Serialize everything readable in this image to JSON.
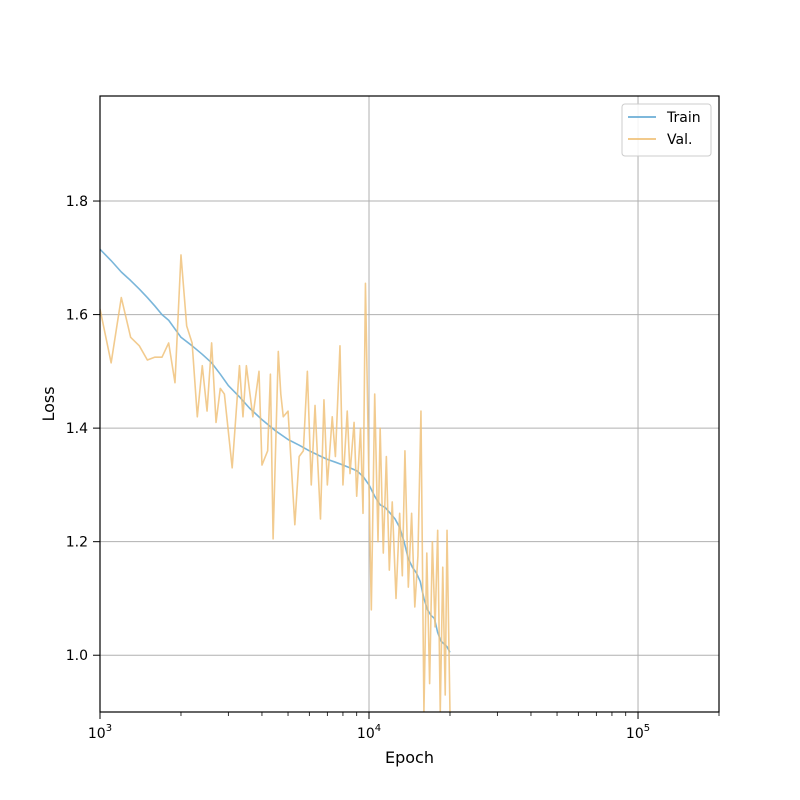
{
  "chart_data": {
    "type": "line",
    "title": "",
    "xlabel": "Epoch",
    "ylabel": "Loss",
    "xscale": "log",
    "xlim": [
      1000,
      200000
    ],
    "ylim": [
      0.9,
      1.985
    ],
    "grid": true,
    "legend_position": "top-right",
    "x_major_ticks": [
      {
        "value": 1000,
        "base": "10",
        "exp": "3"
      },
      {
        "value": 10000,
        "base": "10",
        "exp": "4"
      },
      {
        "value": 100000,
        "base": "10",
        "exp": "5"
      }
    ],
    "y_ticks": [
      {
        "value": 1.0,
        "label": "1.0"
      },
      {
        "value": 1.2,
        "label": "1.2"
      },
      {
        "value": 1.4,
        "label": "1.4"
      },
      {
        "value": 1.6,
        "label": "1.6"
      },
      {
        "value": 1.8,
        "label": "1.8"
      }
    ],
    "series": [
      {
        "name": "Train",
        "color": "#6baed6",
        "points": [
          [
            1000,
            1.715
          ],
          [
            1100,
            1.695
          ],
          [
            1200,
            1.675
          ],
          [
            1300,
            1.66
          ],
          [
            1400,
            1.645
          ],
          [
            1500,
            1.63
          ],
          [
            1600,
            1.615
          ],
          [
            1700,
            1.6
          ],
          [
            1800,
            1.59
          ],
          [
            2000,
            1.56
          ],
          [
            2200,
            1.545
          ],
          [
            2400,
            1.53
          ],
          [
            2600,
            1.515
          ],
          [
            2800,
            1.495
          ],
          [
            3000,
            1.475
          ],
          [
            3300,
            1.455
          ],
          [
            3600,
            1.435
          ],
          [
            4000,
            1.415
          ],
          [
            4500,
            1.395
          ],
          [
            5000,
            1.38
          ],
          [
            5500,
            1.37
          ],
          [
            6000,
            1.36
          ],
          [
            6500,
            1.352
          ],
          [
            7000,
            1.345
          ],
          [
            7500,
            1.34
          ],
          [
            8000,
            1.335
          ],
          [
            8500,
            1.33
          ],
          [
            9000,
            1.325
          ],
          [
            9500,
            1.315
          ],
          [
            10000,
            1.3
          ],
          [
            10500,
            1.28
          ],
          [
            11000,
            1.265
          ],
          [
            11500,
            1.26
          ],
          [
            12000,
            1.25
          ],
          [
            12500,
            1.24
          ],
          [
            13000,
            1.225
          ],
          [
            13500,
            1.2
          ],
          [
            14000,
            1.17
          ],
          [
            14500,
            1.155
          ],
          [
            15000,
            1.145
          ],
          [
            15500,
            1.13
          ],
          [
            16000,
            1.1
          ],
          [
            16500,
            1.08
          ],
          [
            17000,
            1.07
          ],
          [
            17500,
            1.065
          ],
          [
            18000,
            1.04
          ],
          [
            18500,
            1.025
          ],
          [
            19000,
            1.02
          ],
          [
            19500,
            1.015
          ],
          [
            20000,
            1.005
          ]
        ]
      },
      {
        "name": "Val.",
        "color": "#f0c27b",
        "points": [
          [
            1000,
            1.61
          ],
          [
            1100,
            1.515
          ],
          [
            1200,
            1.63
          ],
          [
            1300,
            1.56
          ],
          [
            1400,
            1.545
          ],
          [
            1500,
            1.52
          ],
          [
            1600,
            1.525
          ],
          [
            1700,
            1.525
          ],
          [
            1800,
            1.55
          ],
          [
            1900,
            1.48
          ],
          [
            2000,
            1.705
          ],
          [
            2100,
            1.58
          ],
          [
            2200,
            1.55
          ],
          [
            2300,
            1.42
          ],
          [
            2400,
            1.51
          ],
          [
            2500,
            1.43
          ],
          [
            2600,
            1.55
          ],
          [
            2700,
            1.41
          ],
          [
            2800,
            1.47
          ],
          [
            2900,
            1.46
          ],
          [
            3100,
            1.33
          ],
          [
            3300,
            1.51
          ],
          [
            3400,
            1.42
          ],
          [
            3500,
            1.51
          ],
          [
            3700,
            1.42
          ],
          [
            3900,
            1.5
          ],
          [
            4000,
            1.335
          ],
          [
            4200,
            1.36
          ],
          [
            4300,
            1.495
          ],
          [
            4400,
            1.205
          ],
          [
            4600,
            1.535
          ],
          [
            4700,
            1.46
          ],
          [
            4800,
            1.42
          ],
          [
            5000,
            1.43
          ],
          [
            5300,
            1.23
          ],
          [
            5500,
            1.35
          ],
          [
            5700,
            1.36
          ],
          [
            5900,
            1.5
          ],
          [
            6100,
            1.3
          ],
          [
            6300,
            1.44
          ],
          [
            6600,
            1.24
          ],
          [
            6800,
            1.45
          ],
          [
            7000,
            1.3
          ],
          [
            7300,
            1.42
          ],
          [
            7500,
            1.35
          ],
          [
            7800,
            1.545
          ],
          [
            8000,
            1.3
          ],
          [
            8300,
            1.43
          ],
          [
            8500,
            1.32
          ],
          [
            8800,
            1.41
          ],
          [
            9000,
            1.28
          ],
          [
            9300,
            1.4
          ],
          [
            9500,
            1.25
          ],
          [
            9700,
            1.655
          ],
          [
            10000,
            1.3
          ],
          [
            10200,
            1.08
          ],
          [
            10500,
            1.46
          ],
          [
            10800,
            1.2
          ],
          [
            11000,
            1.4
          ],
          [
            11300,
            1.18
          ],
          [
            11600,
            1.35
          ],
          [
            11900,
            1.15
          ],
          [
            12200,
            1.27
          ],
          [
            12600,
            1.1
          ],
          [
            13000,
            1.25
          ],
          [
            13300,
            1.14
          ],
          [
            13600,
            1.36
          ],
          [
            14000,
            1.12
          ],
          [
            14400,
            1.25
          ],
          [
            14800,
            1.085
          ],
          [
            15200,
            1.175
          ],
          [
            15600,
            1.43
          ],
          [
            16000,
            0.9
          ],
          [
            16400,
            1.18
          ],
          [
            16800,
            0.95
          ],
          [
            17200,
            1.2
          ],
          [
            17600,
            1.05
          ],
          [
            18000,
            1.22
          ],
          [
            18400,
            0.9
          ],
          [
            18800,
            1.155
          ],
          [
            19200,
            0.93
          ],
          [
            19500,
            1.22
          ],
          [
            20000,
            0.9
          ]
        ]
      }
    ]
  }
}
